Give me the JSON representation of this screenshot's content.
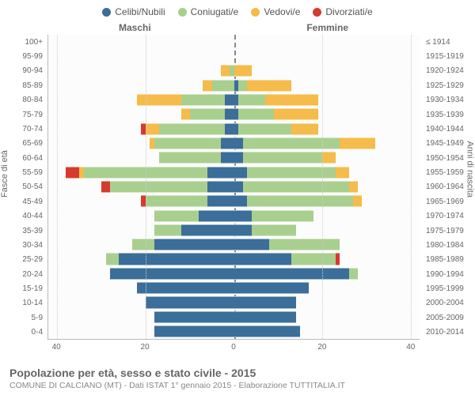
{
  "chart": {
    "type": "population-pyramid",
    "legend": [
      {
        "label": "Celibi/Nubili",
        "color": "#3b6e99"
      },
      {
        "label": "Coniugati/e",
        "color": "#a9cf8f"
      },
      {
        "label": "Vedovi/e",
        "color": "#f5bb4b"
      },
      {
        "label": "Divorziati/e",
        "color": "#d63a2e"
      }
    ],
    "male_label": "Maschi",
    "female_label": "Femmine",
    "y_left_title": "Fasce di età",
    "y_right_title": "Anni di nascita",
    "x_max": 42,
    "x_ticks": [
      40,
      20,
      0,
      20,
      40
    ],
    "background_color": "#fcfcfc",
    "grid_color": "#cccccc",
    "centerline_color": "#888888",
    "rows": [
      {
        "age": "100+",
        "birth": "≤ 1914",
        "m": {
          "cel": 0,
          "con": 0,
          "ved": 0,
          "div": 0
        },
        "f": {
          "cel": 0,
          "con": 0,
          "ved": 0,
          "div": 0
        }
      },
      {
        "age": "95-99",
        "birth": "1915-1919",
        "m": {
          "cel": 0,
          "con": 0,
          "ved": 0,
          "div": 0
        },
        "f": {
          "cel": 0,
          "con": 0,
          "ved": 0,
          "div": 0
        }
      },
      {
        "age": "90-94",
        "birth": "1920-1924",
        "m": {
          "cel": 0,
          "con": 1,
          "ved": 2,
          "div": 0
        },
        "f": {
          "cel": 0,
          "con": 0,
          "ved": 4,
          "div": 0
        }
      },
      {
        "age": "85-89",
        "birth": "1925-1929",
        "m": {
          "cel": 0,
          "con": 5,
          "ved": 2,
          "div": 0
        },
        "f": {
          "cel": 1,
          "con": 2,
          "ved": 10,
          "div": 0
        }
      },
      {
        "age": "80-84",
        "birth": "1930-1934",
        "m": {
          "cel": 2,
          "con": 10,
          "ved": 10,
          "div": 0
        },
        "f": {
          "cel": 1,
          "con": 6,
          "ved": 12,
          "div": 0
        }
      },
      {
        "age": "75-79",
        "birth": "1935-1939",
        "m": {
          "cel": 2,
          "con": 8,
          "ved": 2,
          "div": 0
        },
        "f": {
          "cel": 1,
          "con": 8,
          "ved": 10,
          "div": 0
        }
      },
      {
        "age": "70-74",
        "birth": "1940-1944",
        "m": {
          "cel": 2,
          "con": 15,
          "ved": 3,
          "div": 1
        },
        "f": {
          "cel": 1,
          "con": 12,
          "ved": 6,
          "div": 0
        }
      },
      {
        "age": "65-69",
        "birth": "1945-1949",
        "m": {
          "cel": 3,
          "con": 15,
          "ved": 1,
          "div": 0
        },
        "f": {
          "cel": 2,
          "con": 22,
          "ved": 8,
          "div": 0
        }
      },
      {
        "age": "60-64",
        "birth": "1950-1954",
        "m": {
          "cel": 3,
          "con": 14,
          "ved": 0,
          "div": 0
        },
        "f": {
          "cel": 2,
          "con": 18,
          "ved": 3,
          "div": 0
        }
      },
      {
        "age": "55-59",
        "birth": "1955-1959",
        "m": {
          "cel": 6,
          "con": 28,
          "ved": 1,
          "div": 3
        },
        "f": {
          "cel": 3,
          "con": 20,
          "ved": 3,
          "div": 0
        }
      },
      {
        "age": "50-54",
        "birth": "1960-1964",
        "m": {
          "cel": 6,
          "con": 22,
          "ved": 0,
          "div": 2
        },
        "f": {
          "cel": 2,
          "con": 24,
          "ved": 2,
          "div": 0
        }
      },
      {
        "age": "45-49",
        "birth": "1965-1969",
        "m": {
          "cel": 6,
          "con": 14,
          "ved": 0,
          "div": 1
        },
        "f": {
          "cel": 3,
          "con": 24,
          "ved": 2,
          "div": 0
        }
      },
      {
        "age": "40-44",
        "birth": "1970-1974",
        "m": {
          "cel": 8,
          "con": 10,
          "ved": 0,
          "div": 0
        },
        "f": {
          "cel": 4,
          "con": 14,
          "ved": 0,
          "div": 0
        }
      },
      {
        "age": "35-39",
        "birth": "1975-1979",
        "m": {
          "cel": 12,
          "con": 6,
          "ved": 0,
          "div": 0
        },
        "f": {
          "cel": 4,
          "con": 10,
          "ved": 0,
          "div": 0
        }
      },
      {
        "age": "30-34",
        "birth": "1980-1984",
        "m": {
          "cel": 18,
          "con": 5,
          "ved": 0,
          "div": 0
        },
        "f": {
          "cel": 8,
          "con": 16,
          "ved": 0,
          "div": 0
        }
      },
      {
        "age": "25-29",
        "birth": "1985-1989",
        "m": {
          "cel": 26,
          "con": 3,
          "ved": 0,
          "div": 0
        },
        "f": {
          "cel": 13,
          "con": 10,
          "ved": 0,
          "div": 1
        }
      },
      {
        "age": "20-24",
        "birth": "1990-1994",
        "m": {
          "cel": 28,
          "con": 0,
          "ved": 0,
          "div": 0
        },
        "f": {
          "cel": 26,
          "con": 2,
          "ved": 0,
          "div": 0
        }
      },
      {
        "age": "15-19",
        "birth": "1995-1999",
        "m": {
          "cel": 22,
          "con": 0,
          "ved": 0,
          "div": 0
        },
        "f": {
          "cel": 17,
          "con": 0,
          "ved": 0,
          "div": 0
        }
      },
      {
        "age": "10-14",
        "birth": "2000-2004",
        "m": {
          "cel": 20,
          "con": 0,
          "ved": 0,
          "div": 0
        },
        "f": {
          "cel": 14,
          "con": 0,
          "ved": 0,
          "div": 0
        }
      },
      {
        "age": "5-9",
        "birth": "2005-2009",
        "m": {
          "cel": 18,
          "con": 0,
          "ved": 0,
          "div": 0
        },
        "f": {
          "cel": 14,
          "con": 0,
          "ved": 0,
          "div": 0
        }
      },
      {
        "age": "0-4",
        "birth": "2010-2014",
        "m": {
          "cel": 18,
          "con": 0,
          "ved": 0,
          "div": 0
        },
        "f": {
          "cel": 15,
          "con": 0,
          "ved": 0,
          "div": 0
        }
      }
    ]
  },
  "footer": {
    "title": "Popolazione per età, sesso e stato civile - 2015",
    "subtitle": "COMUNE DI CALCIANO (MT) - Dati ISTAT 1° gennaio 2015 - Elaborazione TUTTITALIA.IT"
  }
}
